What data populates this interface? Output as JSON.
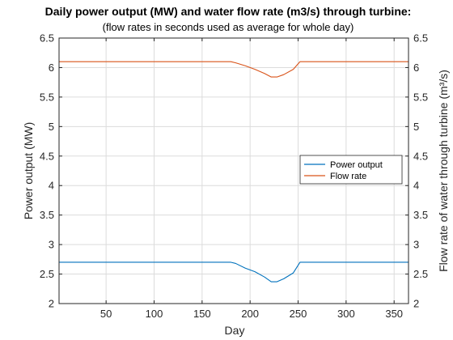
{
  "chart_data": {
    "type": "line",
    "title": "Daily power output (MW) and water flow rate (m3/s) through turbine:",
    "subtitle": "(flow rates in seconds used as average for whole day)",
    "xlabel": "Day",
    "ylabel_left": "Power output (MW)",
    "ylabel_right": "Flow rate of water through turbine (m³/s)",
    "xlim": [
      1,
      365
    ],
    "ylim_left": [
      2,
      6.5
    ],
    "ylim_right": [
      2,
      6.5
    ],
    "xticks": [
      "50",
      "100",
      "150",
      "200",
      "250",
      "300",
      "350"
    ],
    "yticks_left": [
      "2",
      "2.5",
      "3",
      "3.5",
      "4",
      "4.5",
      "5",
      "5.5",
      "6",
      "6.5"
    ],
    "yticks_right": [
      "2",
      "2.5",
      "3",
      "3.5",
      "4",
      "4.5",
      "5",
      "5.5",
      "6",
      "6.5"
    ],
    "grid": true,
    "legend_position": "center-right",
    "series": [
      {
        "name": "Power output",
        "color": "#0072BD",
        "axis": "left",
        "x": [
          1,
          180,
          185,
          195,
          205,
          215,
          222,
          228,
          235,
          245,
          252,
          255,
          365
        ],
        "y": [
          2.7,
          2.7,
          2.68,
          2.6,
          2.54,
          2.45,
          2.37,
          2.37,
          2.42,
          2.52,
          2.7,
          2.7,
          2.7
        ]
      },
      {
        "name": "Flow rate",
        "color": "#D95319",
        "axis": "right",
        "x": [
          1,
          180,
          185,
          195,
          205,
          215,
          222,
          228,
          235,
          245,
          252,
          255,
          365
        ],
        "y": [
          6.1,
          6.1,
          6.08,
          6.03,
          5.97,
          5.9,
          5.84,
          5.84,
          5.88,
          5.97,
          6.1,
          6.1,
          6.1
        ]
      }
    ]
  }
}
